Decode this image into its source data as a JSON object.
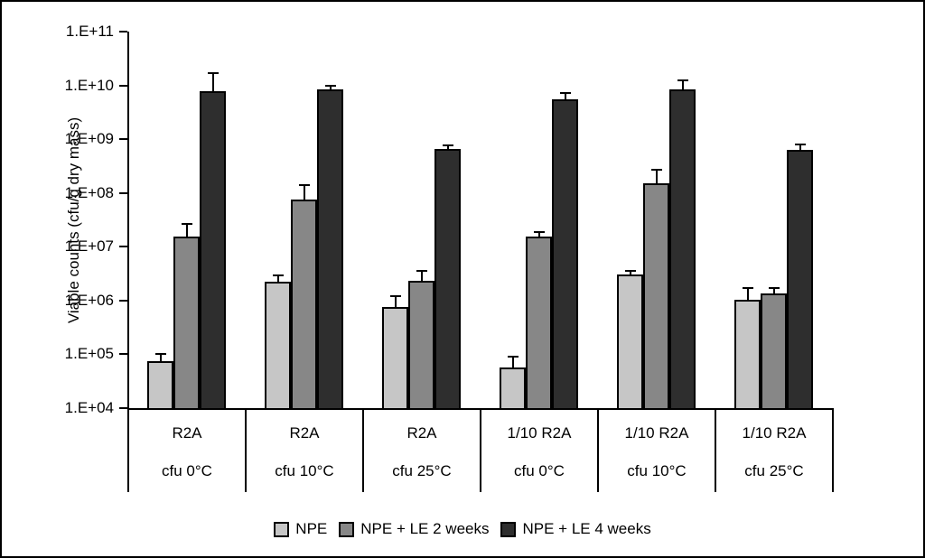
{
  "figure": {
    "background": "#ffffff",
    "border_color": "#000000"
  },
  "chart_data": {
    "type": "bar",
    "scale": "log",
    "title": "",
    "xlabel": "",
    "ylabel": "Viable counts (cfu/g dry mass)",
    "ylim": [
      10000,
      100000000000
    ],
    "ytick_labels": [
      "1.E+11",
      "1.E+10",
      "1.E+09",
      "1.E+08",
      "1.E+07",
      "1.E+06",
      "1.E+05",
      "1.E+04"
    ],
    "ytick_exponents": [
      11,
      10,
      9,
      8,
      7,
      6,
      5,
      4
    ],
    "grid": false,
    "legend_position": "bottom",
    "categories": [
      {
        "line1": "R2A",
        "line2": "cfu 0°C"
      },
      {
        "line1": "R2A",
        "line2": "cfu 10°C"
      },
      {
        "line1": "R2A",
        "line2": "cfu 25°C"
      },
      {
        "line1": "1/10 R2A",
        "line2": "cfu 0°C"
      },
      {
        "line1": "1/10 R2A",
        "line2": "cfu 10°C"
      },
      {
        "line1": "1/10 R2A",
        "line2": "cfu 25°C"
      }
    ],
    "series": [
      {
        "name": "NPE",
        "color": "#c6c6c6",
        "values": [
          75000.0,
          2200000.0,
          760000.0,
          57000.0,
          3000000.0,
          1050000.0
        ],
        "error_upper": [
          100000.0,
          2900000.0,
          1200000.0,
          91000.0,
          3600000.0,
          1700000.0
        ]
      },
      {
        "name": "NPE + LE 2 weeks",
        "color": "#878787",
        "values": [
          15500000.0,
          75000000.0,
          2300000.0,
          15500000.0,
          150000000.0,
          1350000.0
        ],
        "error_upper": [
          27000000.0,
          140000000.0,
          3500000.0,
          19000000.0,
          270000000.0,
          1700000.0
        ]
      },
      {
        "name": "NPE + LE 4 weeks",
        "color": "#2e2e2e",
        "values": [
          7800000000.0,
          8400000000.0,
          650000000.0,
          5500000000.0,
          8400000000.0,
          630000000.0
        ],
        "error_upper": [
          17000000000.0,
          10000000000.0,
          780000000.0,
          7200000000.0,
          12500000000.0,
          790000000.0
        ]
      }
    ]
  }
}
